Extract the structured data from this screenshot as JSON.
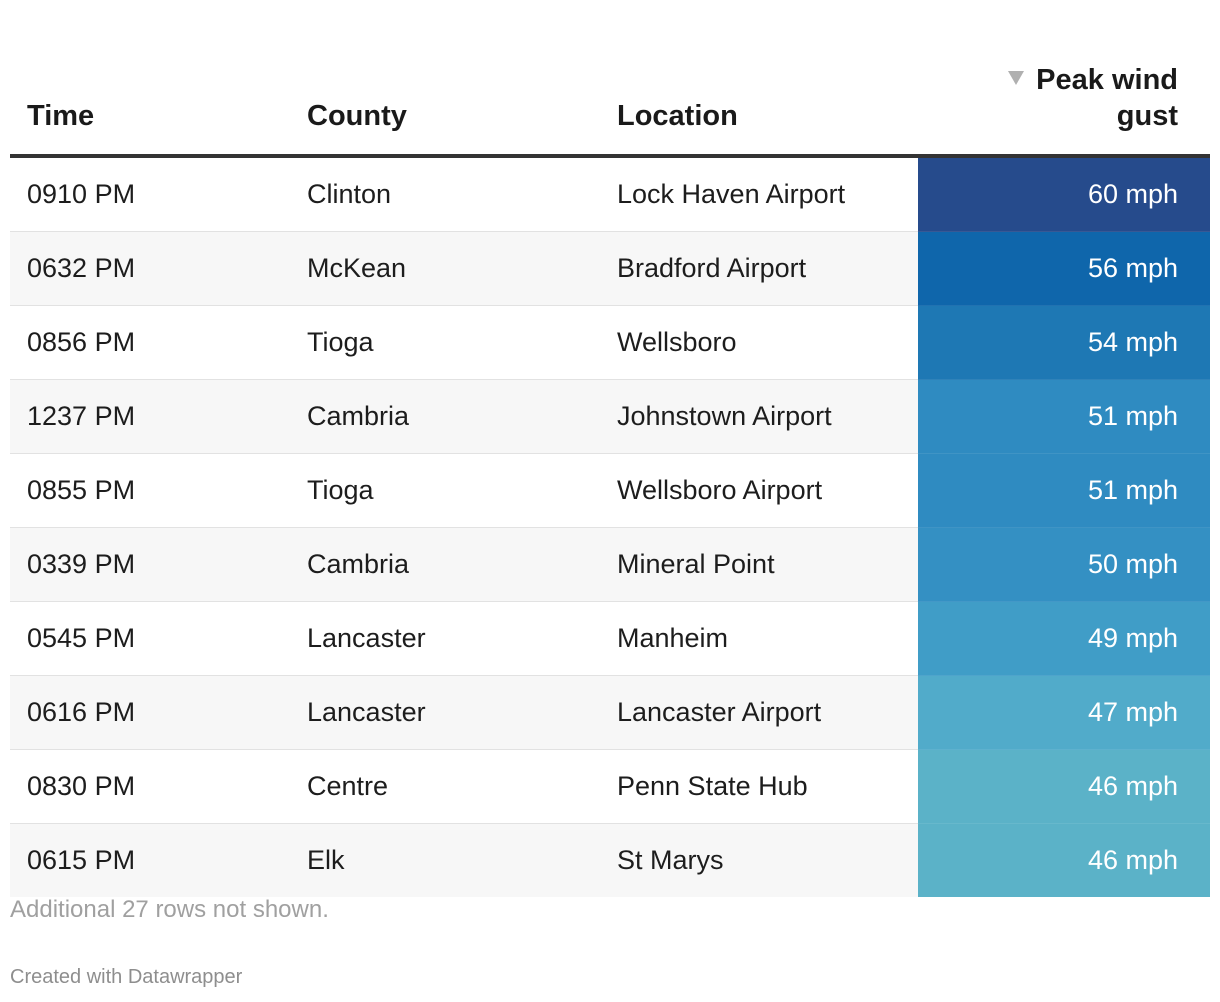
{
  "chart_data": {
    "type": "table",
    "columns": [
      "Time",
      "County",
      "Location",
      "Peak wind gust"
    ],
    "sorted_column": "Peak wind gust",
    "sort_direction": "descending",
    "rows": [
      {
        "time": "0910 PM",
        "county": "Clinton",
        "location": "Lock Haven Airport",
        "gust": "60 mph",
        "gust_value": 60,
        "color": "#264b8c"
      },
      {
        "time": "0632 PM",
        "county": "McKean",
        "location": "Bradford Airport",
        "gust": "56 mph",
        "gust_value": 56,
        "color": "#0f66ab"
      },
      {
        "time": "0856 PM",
        "county": "Tioga",
        "location": "Wellsboro",
        "gust": "54 mph",
        "gust_value": 54,
        "color": "#1e78b4"
      },
      {
        "time": "1237 PM",
        "county": "Cambria",
        "location": "Johnstown Airport",
        "gust": "51 mph",
        "gust_value": 51,
        "color": "#2f8bc1"
      },
      {
        "time": "0855 PM",
        "county": "Tioga",
        "location": "Wellsboro Airport",
        "gust": "51 mph",
        "gust_value": 51,
        "color": "#2f8bc1"
      },
      {
        "time": "0339 PM",
        "county": "Cambria",
        "location": "Mineral Point",
        "gust": "50 mph",
        "gust_value": 50,
        "color": "#3490c3"
      },
      {
        "time": "0545 PM",
        "county": "Lancaster",
        "location": "Manheim",
        "gust": "49 mph",
        "gust_value": 49,
        "color": "#409dc7"
      },
      {
        "time": "0616 PM",
        "county": "Lancaster",
        "location": "Lancaster Airport",
        "gust": "47 mph",
        "gust_value": 47,
        "color": "#51abca"
      },
      {
        "time": "0830 PM",
        "county": "Centre",
        "location": "Penn State Hub",
        "gust": "46 mph",
        "gust_value": 46,
        "color": "#5bb2c8"
      },
      {
        "time": "0615 PM",
        "county": "Elk",
        "location": "St Marys",
        "gust": "46 mph",
        "gust_value": 46,
        "color": "#5bb2c8"
      }
    ]
  },
  "notes": "Additional 27 rows not shown.",
  "footer": "Created with Datawrapper"
}
